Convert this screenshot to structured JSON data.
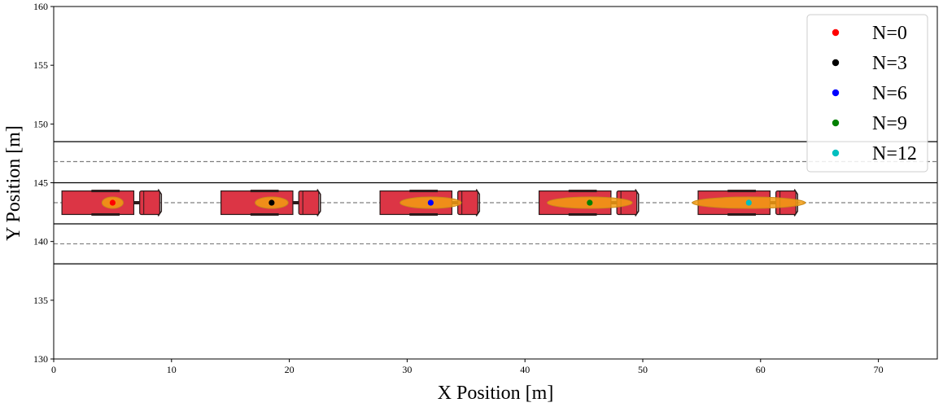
{
  "chart_data": {
    "type": "scatter",
    "title": "",
    "xlabel": "X Position [m]",
    "ylabel": "Y Position [m]",
    "xlim": [
      0,
      75
    ],
    "ylim": [
      130,
      160
    ],
    "xticks": [
      0,
      10,
      20,
      30,
      40,
      50,
      60,
      70
    ],
    "yticks": [
      130,
      135,
      140,
      145,
      150,
      155,
      160
    ],
    "grid": false,
    "legend_position": "top-right",
    "lane_boundaries_solid": [
      138.1,
      141.5,
      145.0,
      148.5
    ],
    "lane_centerlines_dashed": [
      139.8,
      143.3,
      146.8
    ],
    "series": [
      {
        "name": "N=0",
        "color": "#ff0000",
        "x": 5.0,
        "y": 143.3,
        "uncertainty_x_halfwidth": 0.9
      },
      {
        "name": "N=3",
        "color": "#000000",
        "x": 18.5,
        "y": 143.3,
        "uncertainty_x_halfwidth": 1.4
      },
      {
        "name": "N=6",
        "color": "#0000ff",
        "x": 32.0,
        "y": 143.3,
        "uncertainty_x_halfwidth": 2.6
      },
      {
        "name": "N=9",
        "color": "#008000",
        "x": 45.5,
        "y": 143.3,
        "uncertainty_x_halfwidth": 3.6
      },
      {
        "name": "N=12",
        "color": "#00bfbf",
        "x": 59.0,
        "y": 143.3,
        "uncertainty_x_halfwidth": 4.8
      }
    ],
    "vehicle_icon": "truck-icon",
    "vehicle_color": "#dc3545",
    "uncertainty_color": "#f39c12"
  }
}
